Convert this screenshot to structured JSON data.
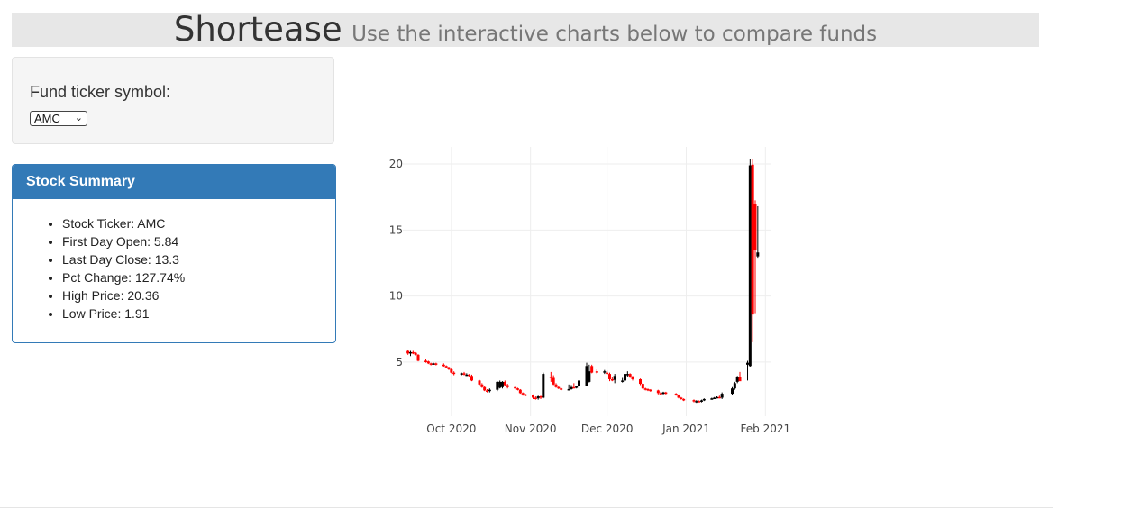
{
  "header": {
    "title": "Shortease",
    "subtitle": "Use the interactive charts below to compare funds"
  },
  "controls": {
    "label": "Fund ticker symbol:",
    "selected": "AMC",
    "chevron_icon": "chevron-down-icon"
  },
  "summary": {
    "heading": "Stock Summary",
    "items": [
      "Stock Ticker: AMC",
      "First Day Open: 5.84",
      "Last Day Close: 13.3",
      "Pct Change: 127.74%",
      "High Price: 20.36",
      "Low Price: 1.91"
    ]
  },
  "colors": {
    "increasing": "#000000",
    "decreasing": "#ff0000",
    "panel": "#337ab7",
    "grid": "#eeeeee"
  },
  "chart_data": {
    "type": "candlestick",
    "x_tick_labels": [
      "Oct 2020",
      "Nov 2020",
      "Dec 2020",
      "Jan 2021",
      "Feb 2021"
    ],
    "y_tick_labels": [
      "5",
      "10",
      "15",
      "20"
    ],
    "y_ticks": [
      5,
      10,
      15,
      20
    ],
    "xlim": [
      "2020-09-12",
      "2021-02-03"
    ],
    "ylim": [
      0.9,
      21.3
    ],
    "grid": true,
    "dates": [
      "2020-09-14",
      "2020-09-15",
      "2020-09-16",
      "2020-09-17",
      "2020-09-18",
      "2020-09-21",
      "2020-09-22",
      "2020-09-23",
      "2020-09-24",
      "2020-09-25",
      "2020-09-28",
      "2020-09-29",
      "2020-09-30",
      "2020-10-01",
      "2020-10-02",
      "2020-10-05",
      "2020-10-06",
      "2020-10-07",
      "2020-10-08",
      "2020-10-09",
      "2020-10-12",
      "2020-10-13",
      "2020-10-14",
      "2020-10-15",
      "2020-10-16",
      "2020-10-19",
      "2020-10-20",
      "2020-10-21",
      "2020-10-22",
      "2020-10-23",
      "2020-10-26",
      "2020-10-27",
      "2020-10-28",
      "2020-10-29",
      "2020-10-30",
      "2020-11-02",
      "2020-11-03",
      "2020-11-04",
      "2020-11-05",
      "2020-11-06",
      "2020-11-09",
      "2020-11-10",
      "2020-11-11",
      "2020-11-12",
      "2020-11-13",
      "2020-11-16",
      "2020-11-17",
      "2020-11-18",
      "2020-11-19",
      "2020-11-20",
      "2020-11-23",
      "2020-11-24",
      "2020-11-25",
      "2020-11-27",
      "2020-11-30",
      "2020-12-01",
      "2020-12-02",
      "2020-12-03",
      "2020-12-04",
      "2020-12-07",
      "2020-12-08",
      "2020-12-09",
      "2020-12-10",
      "2020-12-11",
      "2020-12-14",
      "2020-12-15",
      "2020-12-16",
      "2020-12-17",
      "2020-12-18",
      "2020-12-21",
      "2020-12-22",
      "2020-12-23",
      "2020-12-24",
      "2020-12-28",
      "2020-12-29",
      "2020-12-30",
      "2020-12-31",
      "2021-01-04",
      "2021-01-05",
      "2021-01-06",
      "2021-01-07",
      "2021-01-08",
      "2021-01-11",
      "2021-01-12",
      "2021-01-13",
      "2021-01-14",
      "2021-01-15",
      "2021-01-19",
      "2021-01-20",
      "2021-01-21",
      "2021-01-22",
      "2021-01-25",
      "2021-01-26",
      "2021-01-27",
      "2021-01-28",
      "2021-01-29"
    ],
    "open": [
      5.84,
      5.7,
      5.75,
      5.7,
      5.55,
      5.1,
      5.05,
      4.9,
      4.85,
      4.9,
      4.8,
      4.7,
      4.6,
      4.45,
      4.2,
      4.1,
      4.15,
      4.05,
      4.05,
      3.95,
      3.6,
      3.3,
      3.1,
      2.85,
      2.8,
      2.9,
      3.05,
      3.1,
      3.5,
      3.25,
      3.1,
      3.0,
      2.9,
      2.65,
      2.55,
      2.5,
      2.3,
      2.25,
      2.4,
      2.3,
      3.9,
      3.8,
      3.3,
      3.1,
      3.0,
      2.9,
      2.95,
      3.1,
      3.05,
      3.15,
      3.2,
      3.5,
      4.7,
      4.3,
      4.2,
      4.2,
      4.1,
      3.7,
      3.65,
      3.5,
      3.6,
      4.0,
      4.1,
      3.9,
      3.7,
      3.35,
      3.0,
      2.95,
      2.9,
      2.85,
      2.65,
      2.6,
      2.7,
      2.6,
      2.5,
      2.3,
      2.2,
      2.12,
      2.05,
      2.05,
      2.0,
      2.1,
      2.2,
      2.25,
      2.3,
      2.35,
      2.3,
      2.6,
      3.0,
      3.5,
      3.9,
      4.8,
      4.7,
      19.95,
      17.0,
      13.0
    ],
    "high": [
      5.95,
      5.85,
      5.85,
      5.75,
      5.6,
      5.2,
      5.1,
      4.95,
      4.95,
      4.95,
      4.9,
      4.75,
      4.65,
      4.55,
      4.3,
      4.2,
      4.25,
      4.15,
      4.1,
      4.05,
      3.65,
      3.4,
      3.15,
      2.95,
      3.0,
      3.55,
      3.6,
      3.55,
      3.6,
      3.35,
      3.15,
      3.05,
      2.95,
      2.7,
      2.6,
      2.55,
      2.4,
      2.45,
      2.45,
      4.2,
      4.25,
      4.0,
      3.4,
      3.2,
      3.05,
      3.3,
      3.25,
      3.4,
      3.2,
      3.8,
      4.95,
      4.8,
      4.8,
      4.45,
      4.4,
      4.35,
      4.2,
      3.85,
      4.1,
      3.8,
      4.2,
      4.3,
      4.15,
      3.95,
      3.75,
      3.4,
      3.05,
      3.0,
      2.95,
      2.9,
      2.75,
      2.75,
      2.75,
      2.65,
      2.55,
      2.35,
      2.25,
      2.17,
      2.12,
      2.1,
      2.15,
      2.25,
      2.3,
      2.35,
      2.4,
      2.45,
      2.7,
      3.1,
      3.5,
      3.95,
      4.25,
      5.1,
      20.36,
      20.36,
      17.25,
      16.8
    ],
    "low": [
      5.55,
      5.45,
      5.6,
      5.5,
      5.05,
      4.95,
      4.85,
      4.75,
      4.8,
      4.75,
      4.65,
      4.55,
      4.4,
      4.15,
      4.0,
      4.0,
      4.0,
      3.95,
      3.9,
      3.55,
      3.25,
      3.05,
      2.8,
      2.7,
      2.7,
      2.8,
      3.0,
      3.0,
      3.2,
      3.0,
      2.9,
      2.85,
      2.6,
      2.45,
      2.4,
      2.2,
      2.15,
      2.15,
      2.2,
      2.25,
      3.5,
      3.25,
      3.05,
      2.95,
      2.85,
      2.85,
      2.9,
      3.0,
      3.0,
      3.1,
      3.15,
      3.45,
      4.15,
      4.1,
      4.1,
      4.05,
      3.55,
      3.55,
      3.4,
      3.45,
      3.55,
      3.9,
      3.8,
      3.6,
      3.25,
      2.95,
      2.85,
      2.8,
      2.75,
      2.55,
      2.55,
      2.55,
      2.55,
      2.45,
      2.25,
      2.15,
      2.05,
      1.95,
      1.91,
      1.95,
      1.95,
      2.05,
      2.15,
      2.2,
      2.25,
      2.25,
      2.2,
      2.5,
      2.9,
      3.4,
      3.7,
      3.6,
      4.65,
      6.5,
      8.7,
      12.9
    ],
    "close": [
      5.65,
      5.75,
      5.7,
      5.55,
      5.1,
      5.05,
      4.9,
      4.85,
      4.9,
      4.8,
      4.7,
      4.6,
      4.45,
      4.2,
      4.1,
      4.15,
      4.05,
      4.05,
      3.95,
      3.6,
      3.3,
      3.1,
      2.85,
      2.8,
      2.9,
      3.5,
      3.5,
      3.5,
      3.25,
      3.1,
      3.0,
      2.9,
      2.65,
      2.55,
      2.5,
      2.3,
      2.25,
      2.4,
      2.3,
      4.1,
      3.8,
      3.3,
      3.1,
      3.0,
      2.9,
      2.95,
      3.1,
      3.05,
      3.15,
      3.6,
      4.7,
      4.3,
      4.2,
      4.2,
      4.3,
      4.1,
      3.7,
      3.65,
      3.95,
      3.6,
      4.1,
      4.1,
      3.9,
      3.7,
      3.35,
      3.0,
      2.95,
      2.9,
      2.85,
      2.65,
      2.6,
      2.7,
      2.6,
      2.5,
      2.3,
      2.2,
      2.12,
      2.05,
      2.05,
      2.0,
      2.1,
      2.2,
      2.25,
      2.3,
      2.35,
      2.3,
      2.6,
      3.0,
      3.4,
      3.9,
      3.55,
      4.95,
      19.9,
      8.6,
      13.5,
      13.3
    ]
  }
}
